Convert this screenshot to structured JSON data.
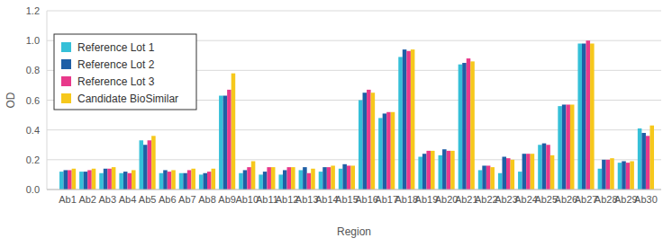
{
  "chart_data": {
    "type": "bar",
    "x_label": "Region",
    "y_label": "OD",
    "categories": [
      "Ab1",
      "Ab2",
      "Ab3",
      "Ab4",
      "Ab5",
      "Ab6",
      "Ab7",
      "Ab8",
      "Ab9",
      "Ab10",
      "Ab11",
      "Ab12",
      "Ab13",
      "Ab14",
      "Ab15",
      "Ab16",
      "Ab17",
      "Ab18",
      "Ab19",
      "Ab20",
      "Ab21",
      "Ab22",
      "Ab23",
      "Ab24",
      "Ab25",
      "Ab26",
      "Ab27",
      "Ab28",
      "Ab29",
      "Ab30"
    ],
    "series": [
      {
        "name": "Reference Lot 1",
        "color": "#35c0d8",
        "values": [
          0.12,
          0.12,
          0.11,
          0.11,
          0.33,
          0.11,
          0.11,
          0.1,
          0.63,
          0.11,
          0.1,
          0.1,
          0.13,
          0.12,
          0.14,
          0.6,
          0.48,
          0.89,
          0.22,
          0.23,
          0.84,
          0.13,
          0.11,
          0.12,
          0.3,
          0.56,
          0.98,
          0.14,
          0.18,
          0.41
        ]
      },
      {
        "name": "Reference Lot 2",
        "color": "#1f5fa6",
        "values": [
          0.13,
          0.12,
          0.14,
          0.12,
          0.3,
          0.13,
          0.11,
          0.11,
          0.63,
          0.13,
          0.12,
          0.13,
          0.15,
          0.15,
          0.17,
          0.65,
          0.51,
          0.94,
          0.24,
          0.27,
          0.85,
          0.16,
          0.22,
          0.24,
          0.31,
          0.57,
          0.98,
          0.2,
          0.19,
          0.38
        ]
      },
      {
        "name": "Reference Lot 3",
        "color": "#e8398b",
        "values": [
          0.13,
          0.13,
          0.14,
          0.11,
          0.33,
          0.12,
          0.13,
          0.12,
          0.67,
          0.15,
          0.15,
          0.15,
          0.11,
          0.15,
          0.16,
          0.67,
          0.52,
          0.93,
          0.26,
          0.26,
          0.88,
          0.16,
          0.21,
          0.24,
          0.3,
          0.57,
          1.0,
          0.2,
          0.18,
          0.36
        ]
      },
      {
        "name": "Candidate BioSimilar",
        "color": "#f6c81c",
        "values": [
          0.14,
          0.14,
          0.15,
          0.13,
          0.36,
          0.13,
          0.14,
          0.14,
          0.78,
          0.19,
          0.15,
          0.15,
          0.14,
          0.16,
          0.16,
          0.65,
          0.52,
          0.94,
          0.26,
          0.26,
          0.86,
          0.15,
          0.2,
          0.24,
          0.23,
          0.57,
          0.98,
          0.21,
          0.19,
          0.43
        ]
      }
    ],
    "ylim": [
      0,
      1.2
    ],
    "yticks": [
      {
        "value": 0,
        "label": "0.0"
      },
      0.2,
      0.4,
      0.6,
      0.8,
      {
        "value": 1,
        "label": "1.0"
      },
      1.2
    ],
    "grid": true,
    "legend": "upper left"
  }
}
